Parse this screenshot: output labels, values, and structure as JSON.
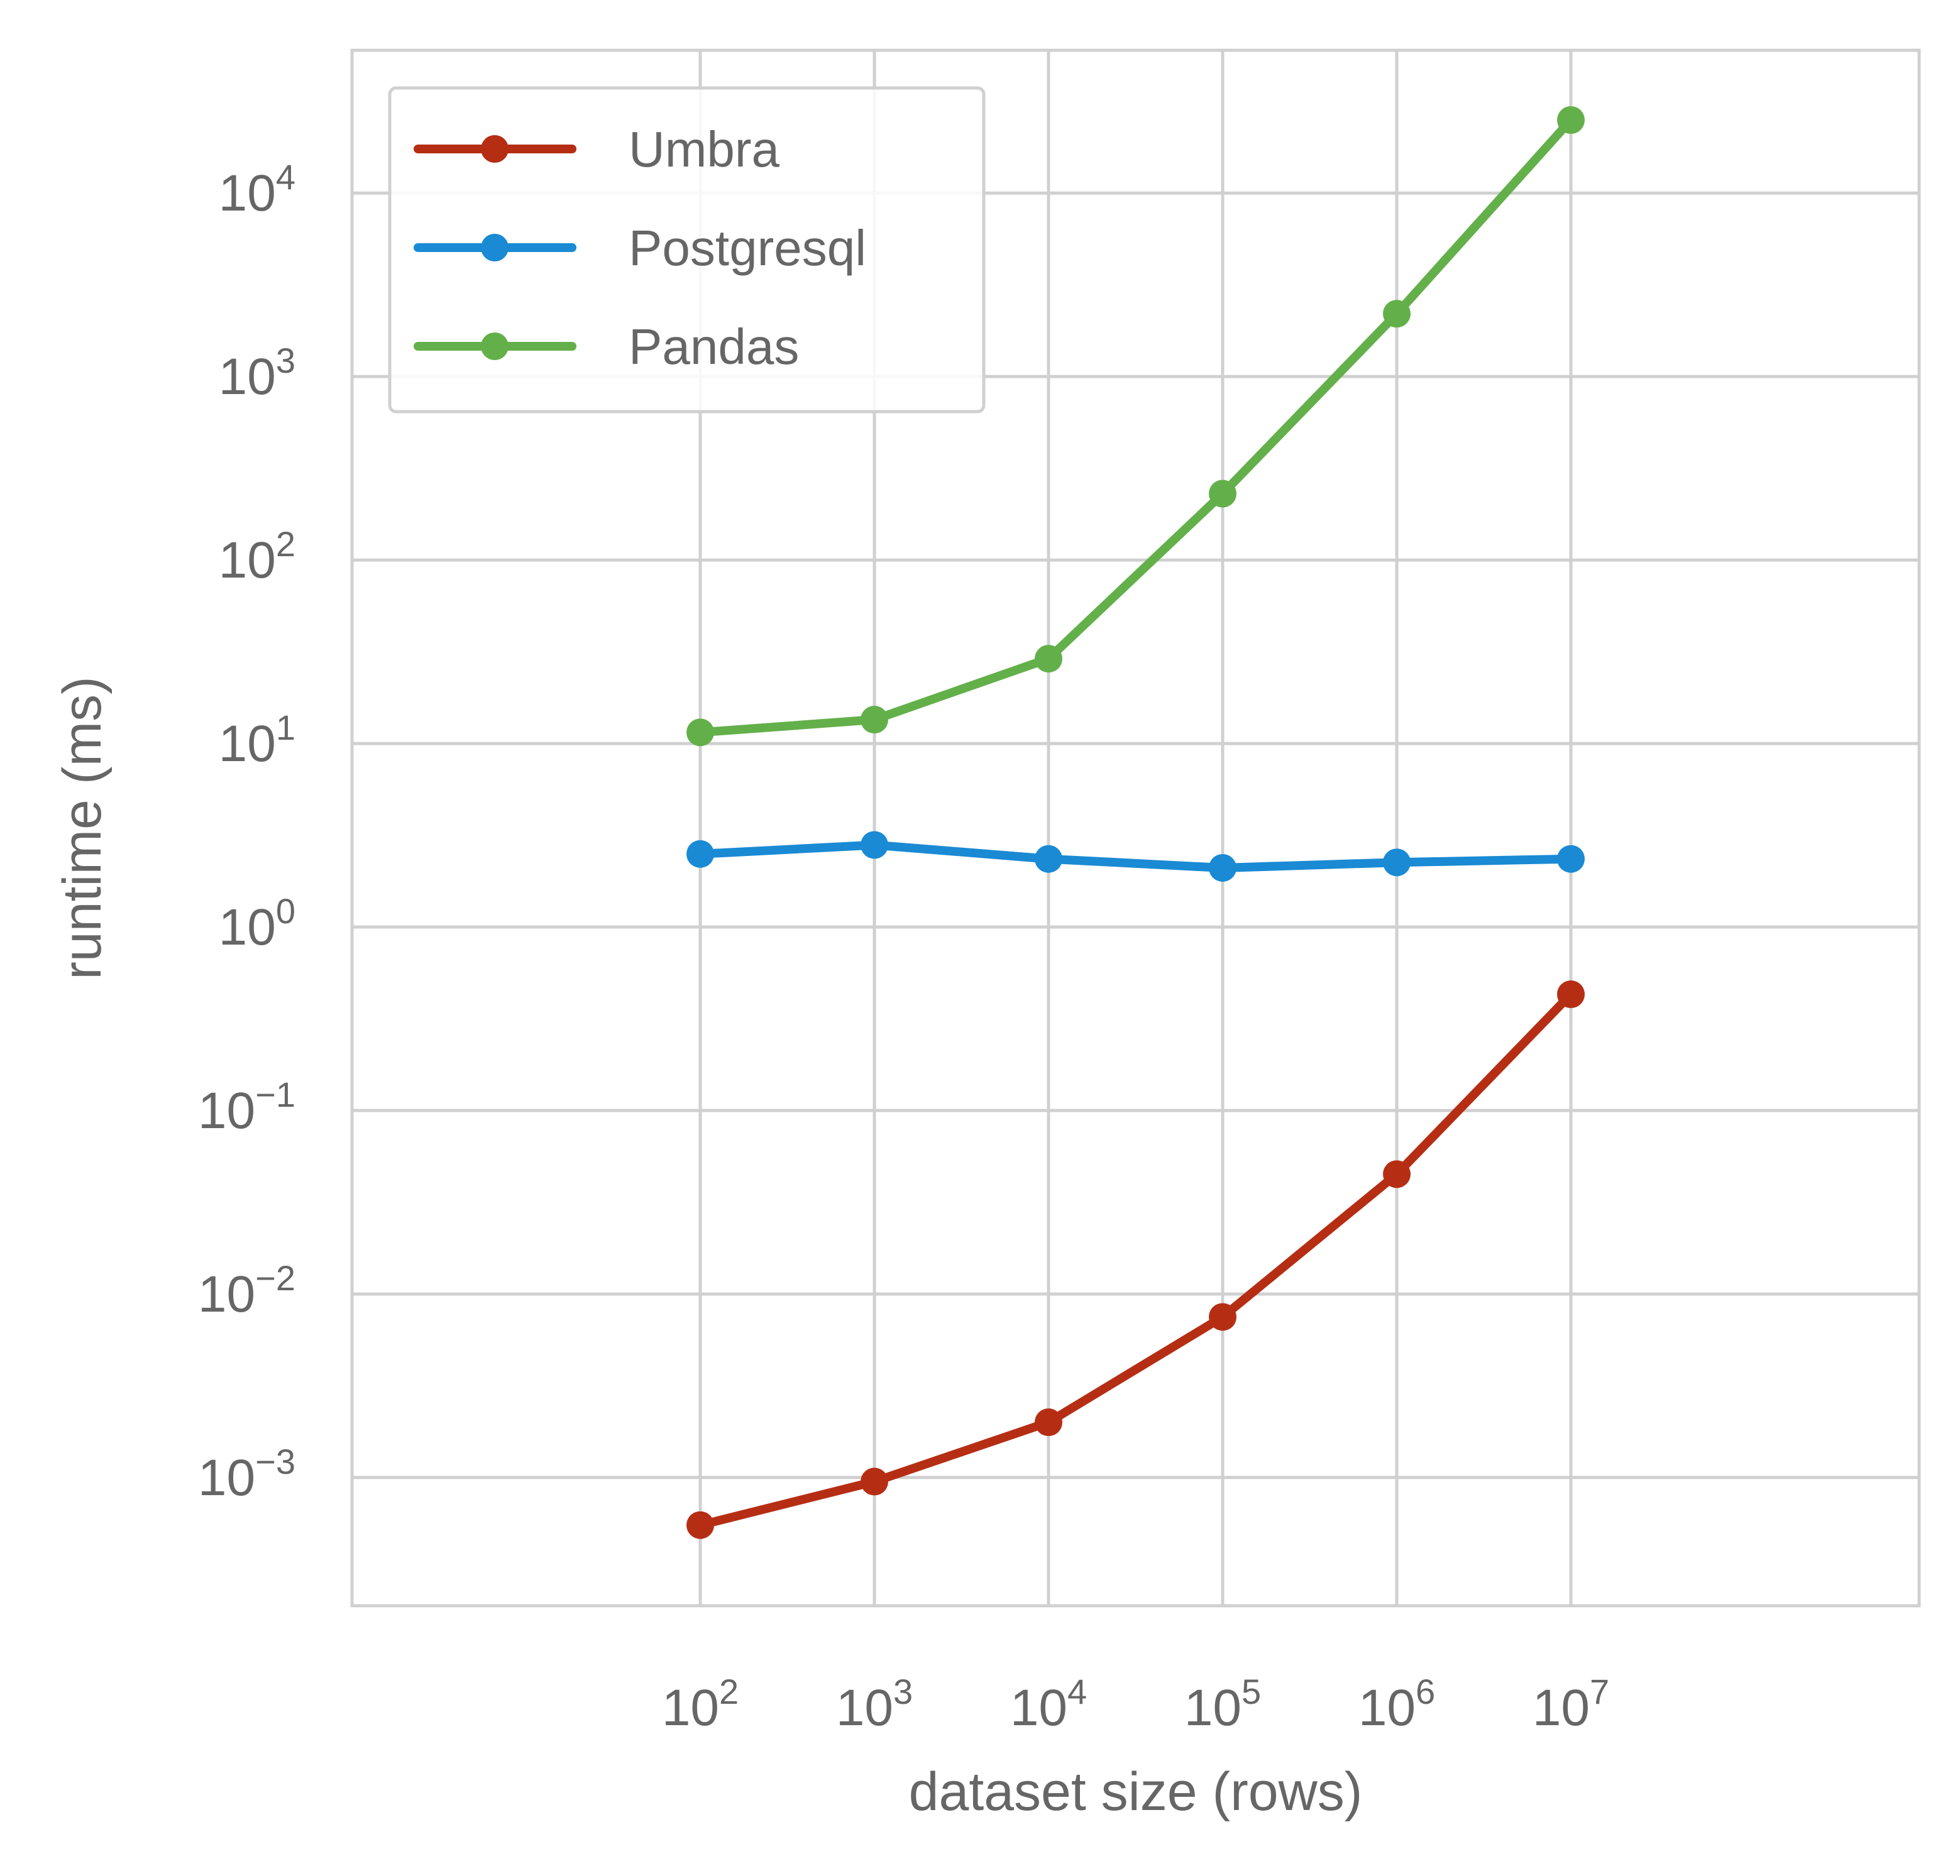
{
  "chart_data": {
    "type": "line",
    "xlabel": "dataset size (rows)",
    "ylabel": "runtime (ms)",
    "x_scale": "log",
    "y_scale": "log",
    "xlim": [
      1,
      1000000000
    ],
    "ylim": [
      0.0002,
      60000
    ],
    "grid": true,
    "legend_position": "top-left",
    "x_ticks": [
      {
        "value": 100,
        "base": "10",
        "exp": "2"
      },
      {
        "value": 1000,
        "base": "10",
        "exp": "3"
      },
      {
        "value": 10000,
        "base": "10",
        "exp": "4"
      },
      {
        "value": 100000,
        "base": "10",
        "exp": "5"
      },
      {
        "value": 1000000,
        "base": "10",
        "exp": "6"
      },
      {
        "value": 10000000,
        "base": "10",
        "exp": "7"
      }
    ],
    "y_ticks": [
      {
        "value": 0.001,
        "base": "10",
        "exp": "−3"
      },
      {
        "value": 0.01,
        "base": "10",
        "exp": "−2"
      },
      {
        "value": 0.1,
        "base": "10",
        "exp": "−1"
      },
      {
        "value": 1,
        "base": "10",
        "exp": "0"
      },
      {
        "value": 10,
        "base": "10",
        "exp": "1"
      },
      {
        "value": 100,
        "base": "10",
        "exp": "2"
      },
      {
        "value": 1000,
        "base": "10",
        "exp": "3"
      },
      {
        "value": 10000,
        "base": "10",
        "exp": "4"
      }
    ],
    "x": [
      100,
      1000,
      10000,
      100000,
      1000000,
      10000000
    ],
    "series": [
      {
        "name": "Umbra",
        "color": "#B52E14",
        "values": [
          0.00055,
          0.00095,
          0.002,
          0.0075,
          0.045,
          0.43
        ]
      },
      {
        "name": "Postgresql",
        "color": "#1A8AD4",
        "values": [
          2.5,
          2.8,
          2.35,
          2.1,
          2.25,
          2.35
        ]
      },
      {
        "name": "Pandas",
        "color": "#63B04A",
        "values": [
          11.5,
          13.5,
          29,
          230,
          2200,
          25000
        ]
      }
    ]
  }
}
